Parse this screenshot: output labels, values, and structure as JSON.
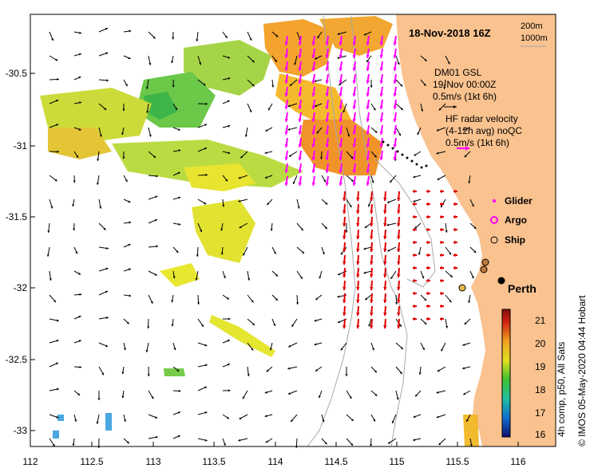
{
  "map": {
    "title": "18-Nov-2018 16Z",
    "depth_contours": [
      "200m",
      "1000m"
    ],
    "city": "Perth",
    "lat_ticks": [
      "-30.5",
      "-31",
      "-31.5",
      "-32",
      "-32.5",
      "-33"
    ],
    "lon_ticks": [
      "112",
      "112.5",
      "113",
      "113.5",
      "114",
      "114.5",
      "115",
      "115.5",
      "116"
    ],
    "gsl_note": [
      "DM01 GSL",
      "19-Nov 00:00Z",
      "0.5m/s (1kt 6h)"
    ],
    "hf_note": [
      "HF radar velocity",
      "(4-12h avg) noQC",
      "0.5m/s (1kt 6h)"
    ],
    "legend": [
      "Glider",
      "Argo",
      "Ship"
    ],
    "colorbar_ticks": [
      "21",
      "20",
      "19",
      "18",
      "17",
      "16"
    ],
    "colorbar_label": "4h comp, p50, All Sats",
    "credit": "© IMOS 05-May-2020 04:44 Hobart",
    "colors": {
      "land": "#f9c28f",
      "hf_arrow": "#ff00ff",
      "red_arrow": "#e00000",
      "model_arrow": "#000000",
      "contour": "#a8a8a8"
    }
  }
}
